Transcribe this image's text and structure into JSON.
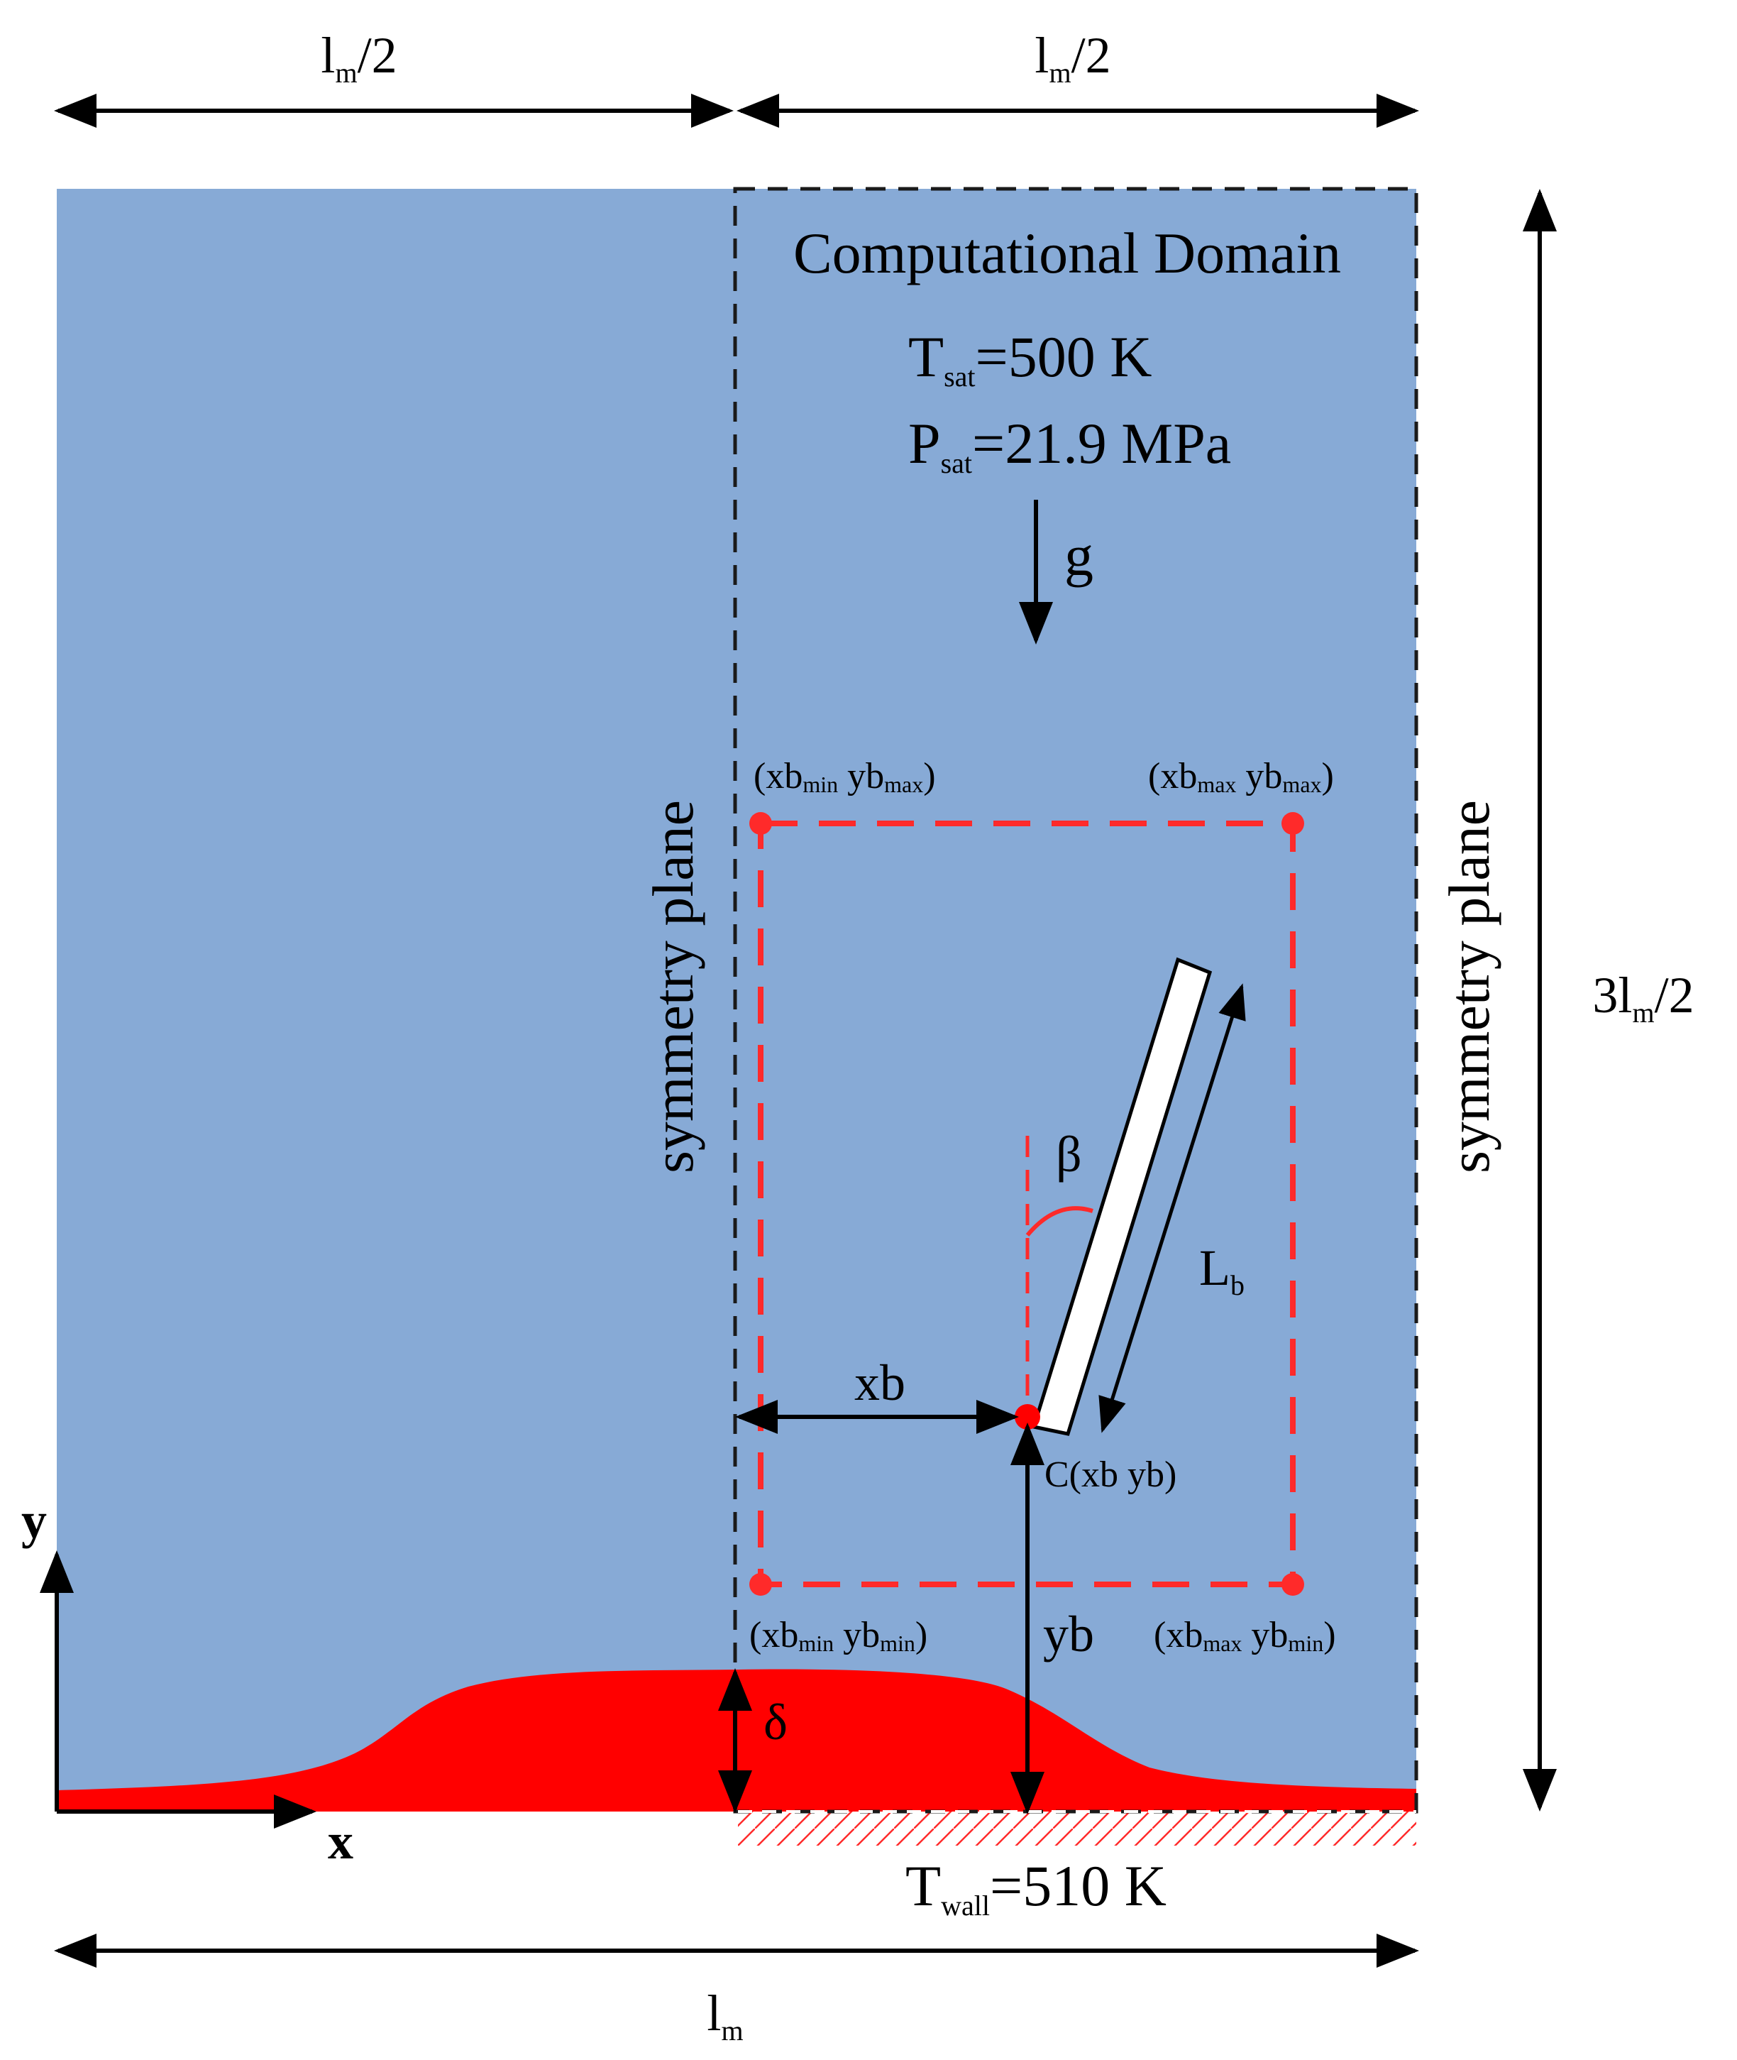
{
  "colors": {
    "fluid": "#87aad6",
    "liquid": "#ff0000",
    "domain_border": "#1a1a1a",
    "bubble_box": "#ff2a2a",
    "rod": "#ffffff",
    "arrow": "#000000"
  },
  "dims": {
    "half_left": {
      "base": "l",
      "sub": "m",
      "tail": "/2"
    },
    "half_right": {
      "base": "l",
      "sub": "m",
      "tail": "/2"
    },
    "height": {
      "base": "3l",
      "sub": "m",
      "tail": "/2"
    },
    "bottom": {
      "base": "l",
      "sub": "m"
    }
  },
  "domain": {
    "title": "Computational Domain",
    "tsat": {
      "sym": "T",
      "sub": "sat",
      "rest": "=500 K"
    },
    "psat": {
      "sym": "P",
      "sub": "sat",
      "rest": "=21.9 MPa"
    },
    "gravity": "g"
  },
  "symmetry": {
    "left": "symmetry plane",
    "right": "symmetry plane"
  },
  "corners": {
    "top_left": {
      "p1": "(xb",
      "s1": "min",
      "p2": " yb",
      "s2": "max",
      "p3": ")"
    },
    "top_right": {
      "p1": "(xb",
      "s1": "max",
      "p2": " yb",
      "s2": "max",
      "p3": ")"
    },
    "bottom_left": {
      "p1": "(xb",
      "s1": "min",
      "p2": " yb",
      "s2": "min",
      "p3": ")"
    },
    "bottom_right": {
      "p1": "(xb",
      "s1": "max",
      "p2": " yb",
      "s2": "min",
      "p3": ")"
    }
  },
  "body": {
    "angle": "β",
    "length": {
      "sym": "L",
      "sub": "b"
    },
    "xb": "xb",
    "yb": "yb",
    "center": "C(xb yb)"
  },
  "film": {
    "thickness": "δ"
  },
  "axes": {
    "x": "x",
    "y": "y"
  },
  "wall": {
    "sym": "T",
    "sub": "wall",
    "rest": "=510 K"
  }
}
